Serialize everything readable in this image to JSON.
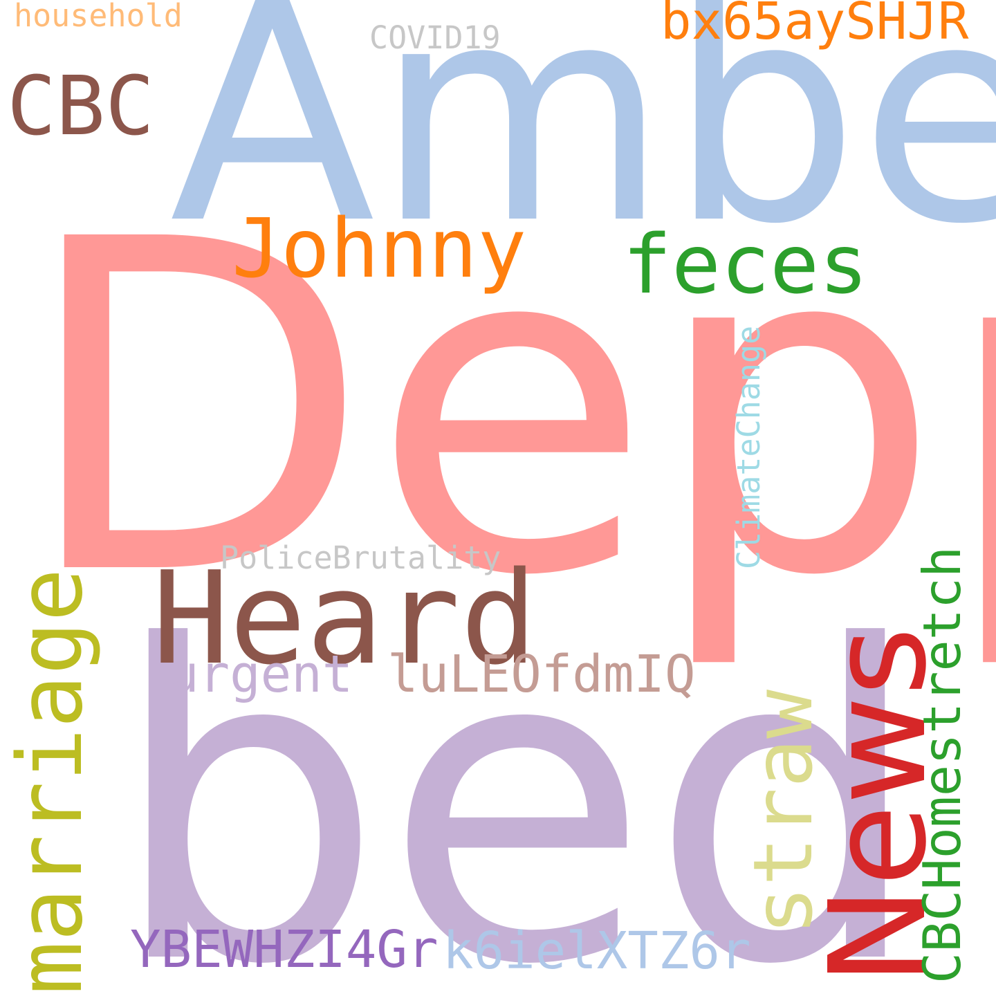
{
  "words": [
    {
      "id": "depp",
      "text": "Depp",
      "color": "#ff9896"
    },
    {
      "id": "amber",
      "text": "Amber",
      "color": "#aec7e8"
    },
    {
      "id": "bed",
      "text": "bed",
      "color": "#c5b0d5"
    },
    {
      "id": "heard",
      "text": "Heard",
      "color": "#8c564b"
    },
    {
      "id": "news",
      "text": "News",
      "color": "#d62728"
    },
    {
      "id": "marriage",
      "text": "marriage",
      "color": "#bcbd22"
    },
    {
      "id": "johnny",
      "text": "Johnny",
      "color": "#ff7f0e"
    },
    {
      "id": "feces",
      "text": "feces",
      "color": "#2ca02c"
    },
    {
      "id": "straw",
      "text": "straw",
      "color": "#dbdb8d"
    },
    {
      "id": "cbc",
      "text": "CBC",
      "color": "#8c564b"
    },
    {
      "id": "cbchomestretch",
      "text": "CBCHomestretch",
      "color": "#2ca02c"
    },
    {
      "id": "bx65ayshjr",
      "text": "bx65aySHJR",
      "color": "#ff7f0e"
    },
    {
      "id": "lulEOfdmIQ",
      "text": "luLEOfdmIQ",
      "color": "#c49c94"
    },
    {
      "id": "urgent",
      "text": "urgent",
      "color": "#c5b0d5"
    },
    {
      "id": "ybewhzi4gr",
      "text": "YBEWHZI4Gr",
      "color": "#9467bd"
    },
    {
      "id": "k6ielxtz6r",
      "text": "k6ielXTZ6r",
      "color": "#aec7e8"
    },
    {
      "id": "policebrutality",
      "text": "PoliceBrutality",
      "color": "#c7c7c7"
    },
    {
      "id": "climatechange",
      "text": "ClimateChange",
      "color": "#9edae5"
    },
    {
      "id": "covid19",
      "text": "COVID19",
      "color": "#c7c7c7"
    },
    {
      "id": "household",
      "text": "household",
      "color": "#ffbb78"
    }
  ]
}
